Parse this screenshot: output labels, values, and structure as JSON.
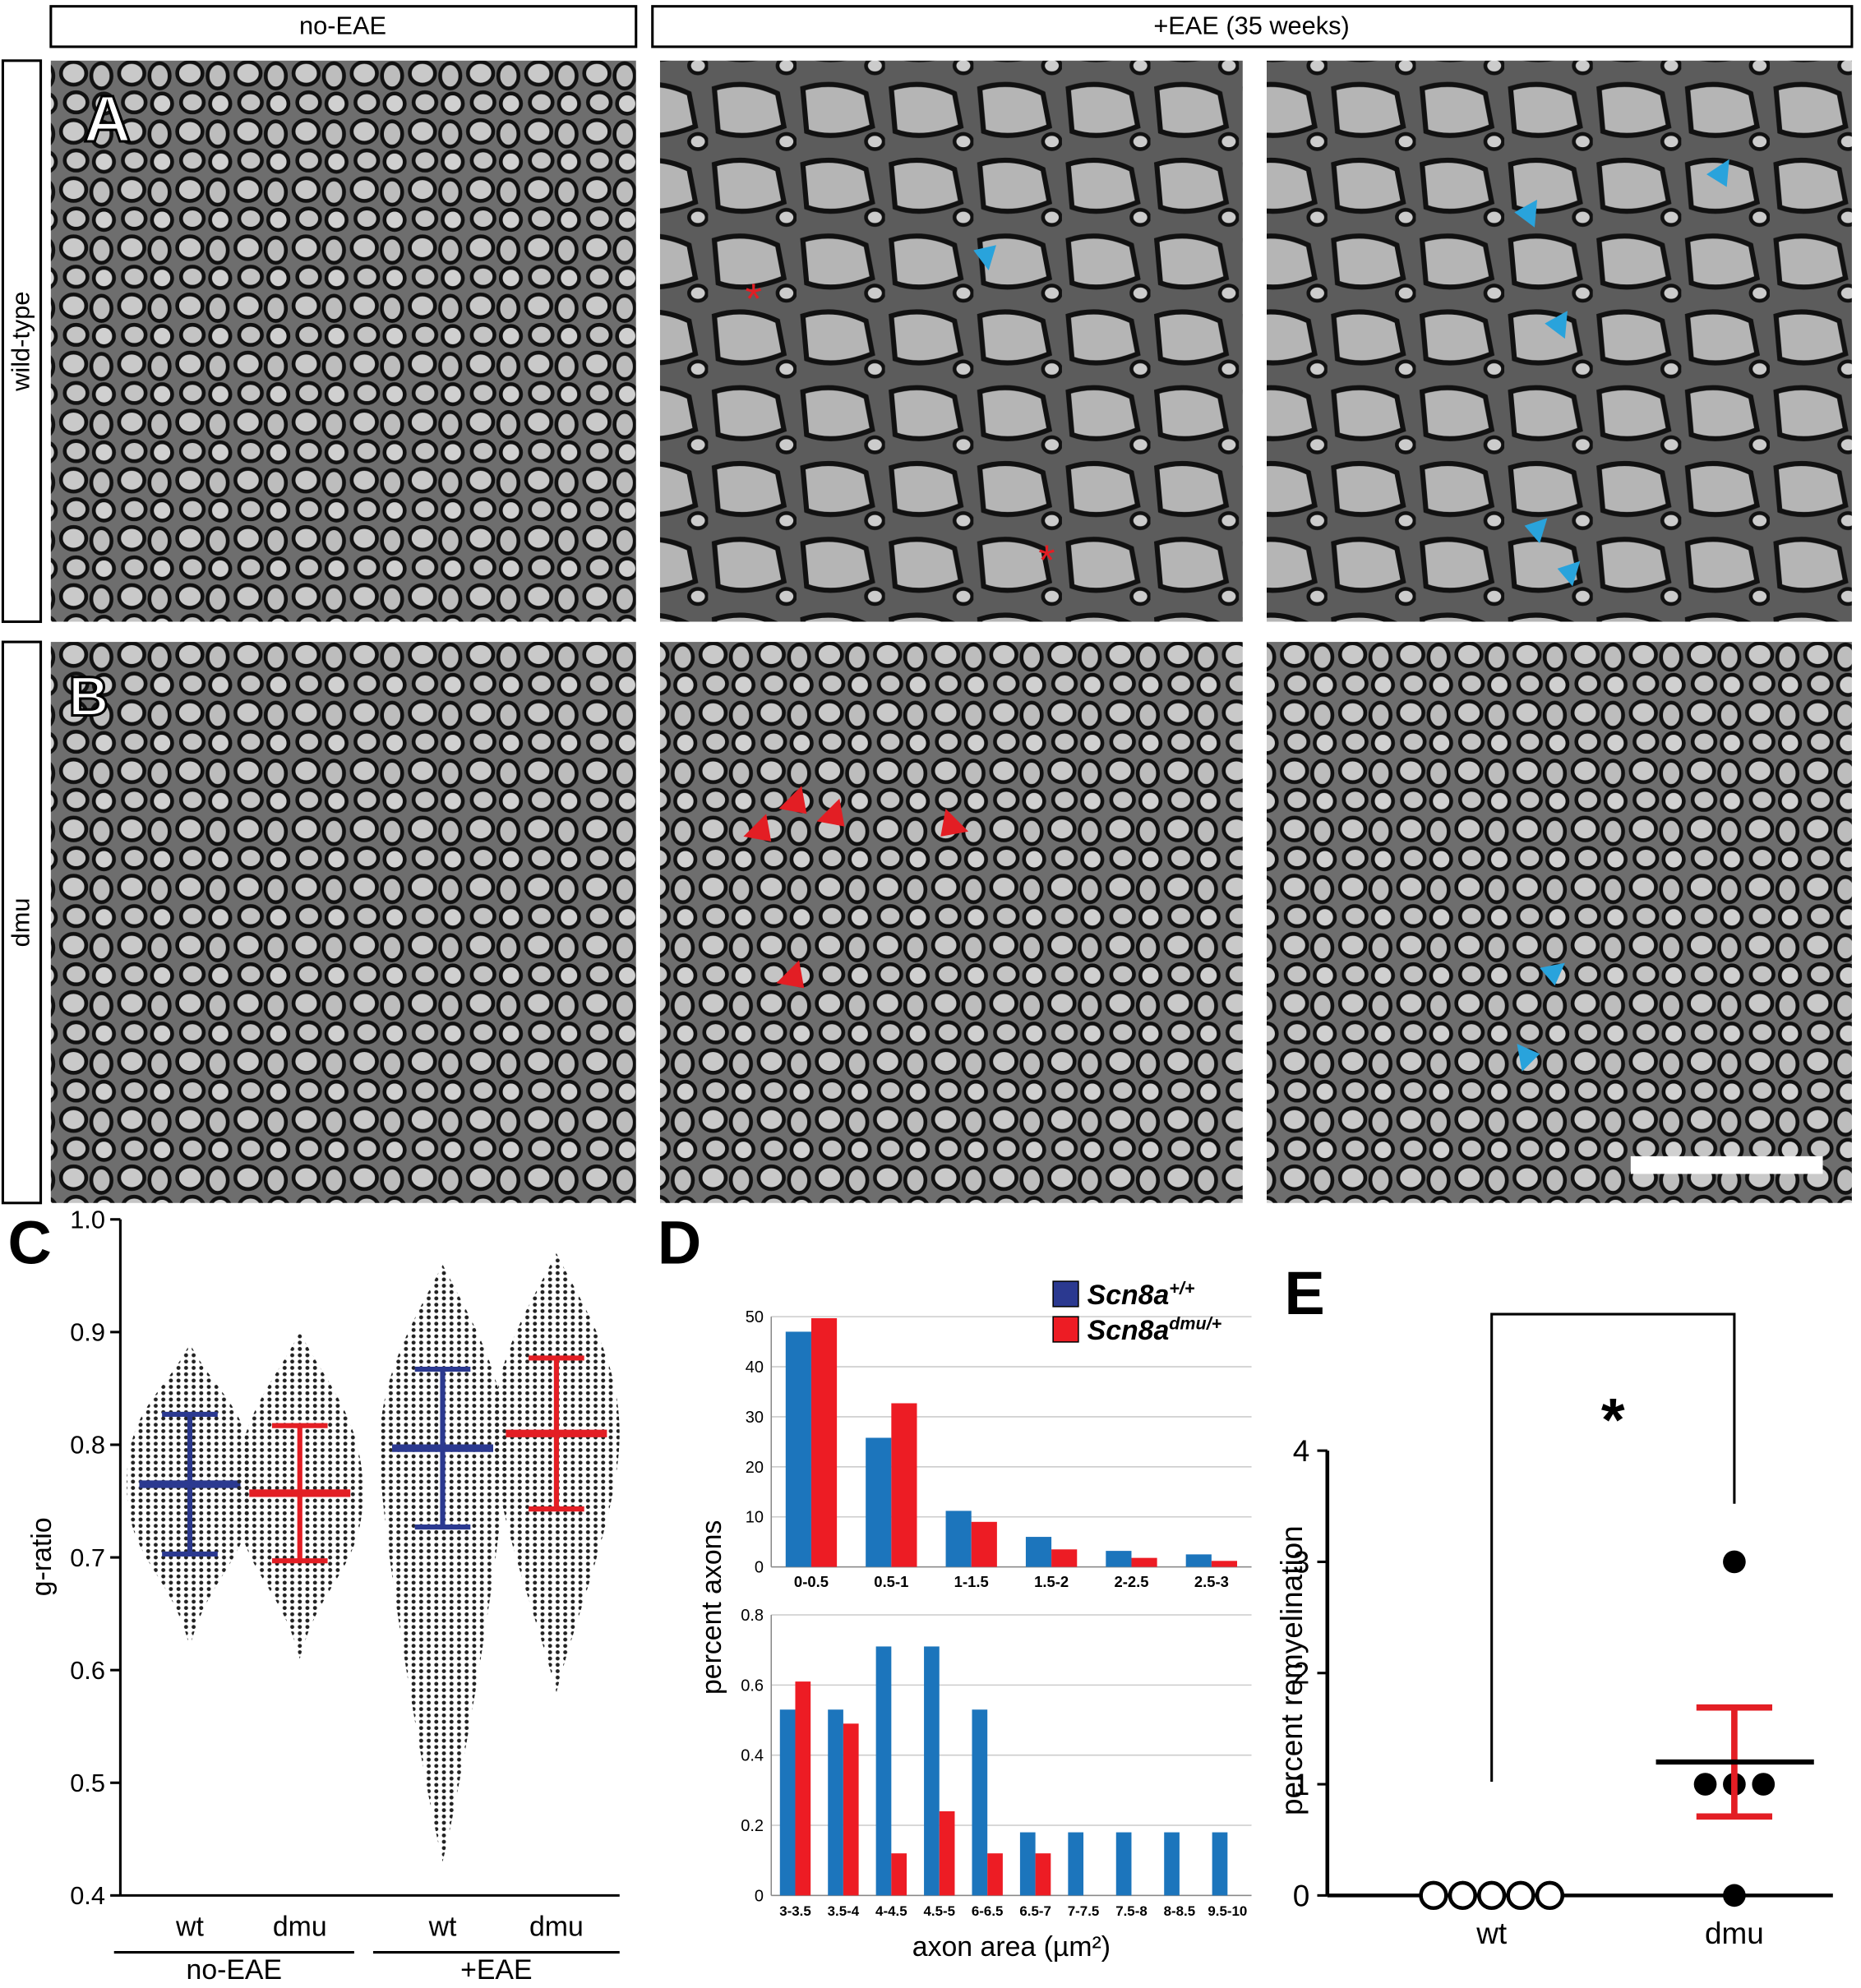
{
  "header": {
    "no_eae": "no-EAE",
    "eae": "+EAE (35 weeks)"
  },
  "rows": {
    "wild_type": "wild-type",
    "dmu": "dmu"
  },
  "panel_letters": [
    "A",
    "B",
    "C",
    "D",
    "E"
  ],
  "chart_data": [
    {
      "type": "dot-summary",
      "ylabel": "g-ratio",
      "ylim": [
        0.4,
        1.0
      ],
      "yticks": [
        0.4,
        0.5,
        0.6,
        0.7,
        0.8,
        0.9,
        {
          "value": 1.0,
          "label": "1.0"
        }
      ],
      "categories": [
        "wt",
        "dmu",
        "wt",
        "dmu"
      ],
      "group_labels": [
        "no-EAE",
        "+EAE"
      ],
      "colors": [
        "#2b3990",
        "#e31e24",
        "#2b3990",
        "#e31e24"
      ],
      "means": [
        0.765,
        0.757,
        0.797,
        0.81
      ],
      "sd": [
        0.062,
        0.06,
        0.07,
        0.067
      ],
      "min": [
        0.62,
        0.61,
        0.43,
        0.58
      ],
      "max": [
        0.89,
        0.9,
        0.96,
        0.97
      ]
    },
    {
      "type": "bar",
      "ylim": [
        0,
        50
      ],
      "yticks": [
        0,
        10,
        20,
        30,
        40,
        50
      ],
      "categories": [
        "0-0.5",
        "0.5-1",
        "1-1.5",
        "1.5-2",
        "2-2.5",
        "2.5-3"
      ],
      "series": [
        {
          "name": "Scn8a",
          "name_sup": "+/+",
          "color": "#1c75bc",
          "legend_color": "#2b3990",
          "values": [
            47,
            25.8,
            11.2,
            6,
            3.2,
            2.5
          ]
        },
        {
          "name": "Scn8a",
          "name_sup": "dmu/+",
          "color": "#ed1c24",
          "legend_color": "#ed1c24",
          "values": [
            49.7,
            32.7,
            9,
            3.5,
            1.8,
            1.2
          ]
        }
      ],
      "grid": true
    },
    {
      "type": "bar",
      "ylabel": "percent axons",
      "xlabel": "axon area (µm²)",
      "ylim": [
        0,
        0.8
      ],
      "yticks": [
        0,
        0.2,
        0.4,
        0.6,
        0.8
      ],
      "categories": [
        "3-3.5",
        "3.5-4",
        "4-4.5",
        "4.5-5",
        "6-6.5",
        "6.5-7",
        "7-7.5",
        "7.5-8",
        "8-8.5",
        "9.5-10"
      ],
      "series": [
        {
          "color": "#1c75bc",
          "values": [
            0.53,
            0.53,
            0.71,
            0.71,
            0.53,
            0.18,
            0.18,
            0.18,
            0.18,
            0.18
          ]
        },
        {
          "color": "#ed1c24",
          "values": [
            0.61,
            0.49,
            0.12,
            0.24,
            0.12,
            0.12,
            null,
            null,
            null,
            null
          ]
        }
      ],
      "grid": true
    },
    {
      "type": "scatter",
      "ylabel": "percent remyelination",
      "ylim": [
        0,
        4
      ],
      "yticks": [
        0,
        1,
        2,
        3,
        4
      ],
      "categories": [
        "wt",
        "dmu"
      ],
      "points": [
        [
          0,
          0,
          0,
          0,
          0
        ],
        [
          3,
          1,
          1,
          1,
          0
        ]
      ],
      "mean": 1.2,
      "sem": 0.49,
      "annotation": "*"
    }
  ]
}
